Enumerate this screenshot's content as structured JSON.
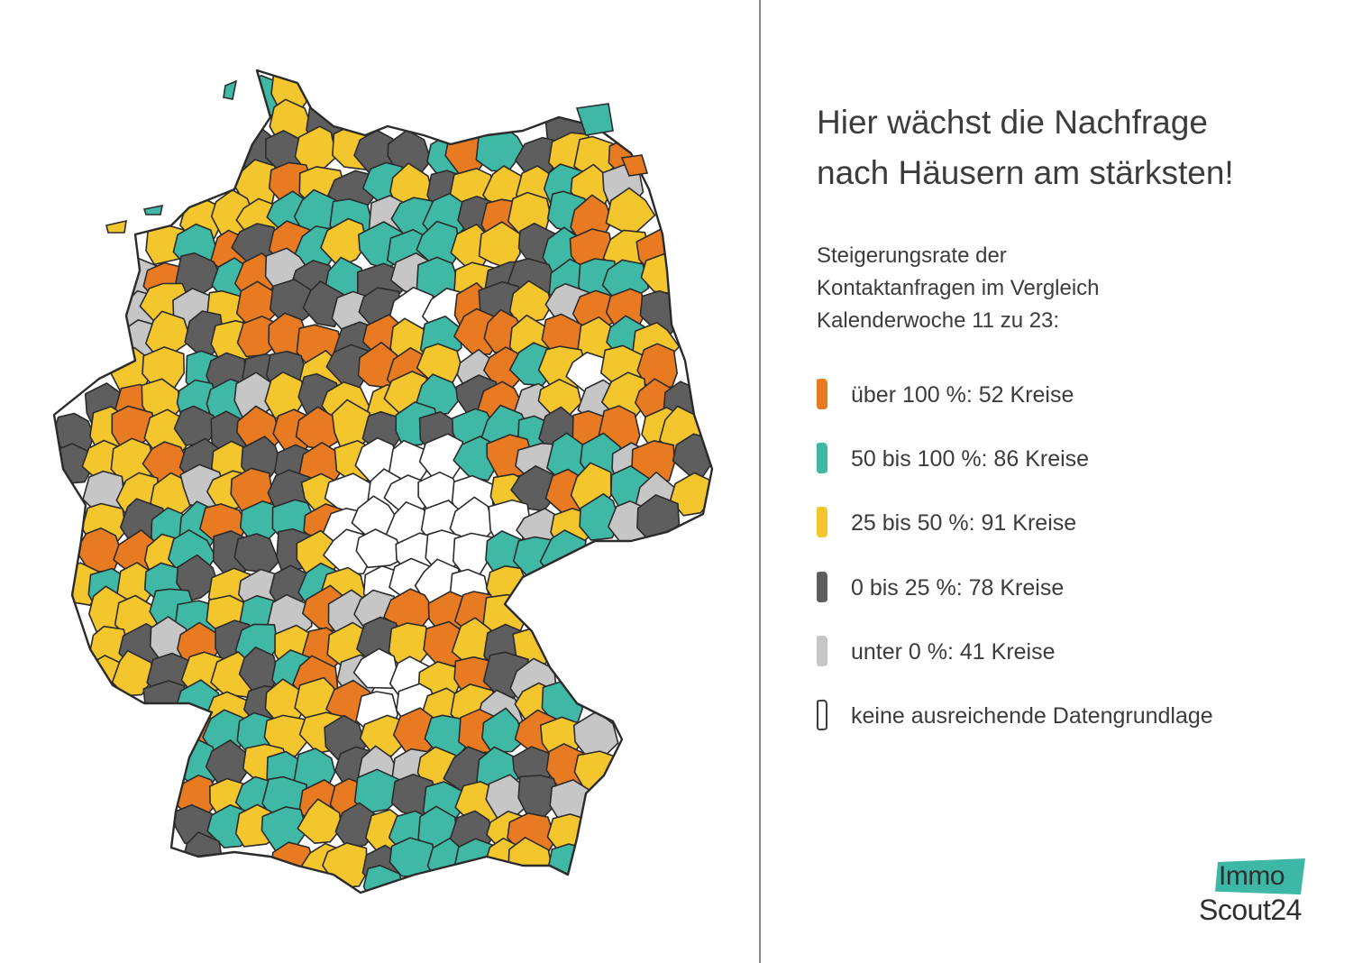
{
  "title": {
    "line1": "Hier wächst die Nachfrage",
    "line2": "nach Häusern am stärksten!"
  },
  "subtitle": {
    "line1": "Steigerungsrate der",
    "line2": "Kontaktanfragen im Vergleich",
    "line3": "Kalenderwoche 11 zu 23:"
  },
  "legend": [
    {
      "label": "über 100 %: 52 Kreise",
      "color": "#e87b22"
    },
    {
      "label": "50 bis 100 %: 86 Kreise",
      "color": "#3fb8a6"
    },
    {
      "label": "25 bis 50 %: 91 Kreise",
      "color": "#f2c62c"
    },
    {
      "label": "0 bis 25 %: 78 Kreise",
      "color": "#5e5e5e"
    },
    {
      "label": "unter 0 %: 41 Kreise",
      "color": "#c6c6c6"
    },
    {
      "label": "keine ausreichende Datengrundlage",
      "color": "#ffffff"
    }
  ],
  "logo": {
    "top": "Immo",
    "bottom": "Scout24",
    "badge_color": "#3eb8a6"
  },
  "colors": {
    "orange": "#e87b22",
    "teal": "#3fb8a6",
    "yellow": "#f2c62c",
    "darkgray": "#5e5e5e",
    "lightgray": "#c6c6c6",
    "white": "#ffffff",
    "border": "#2b2b2b",
    "divider": "#8c8c8c"
  }
}
